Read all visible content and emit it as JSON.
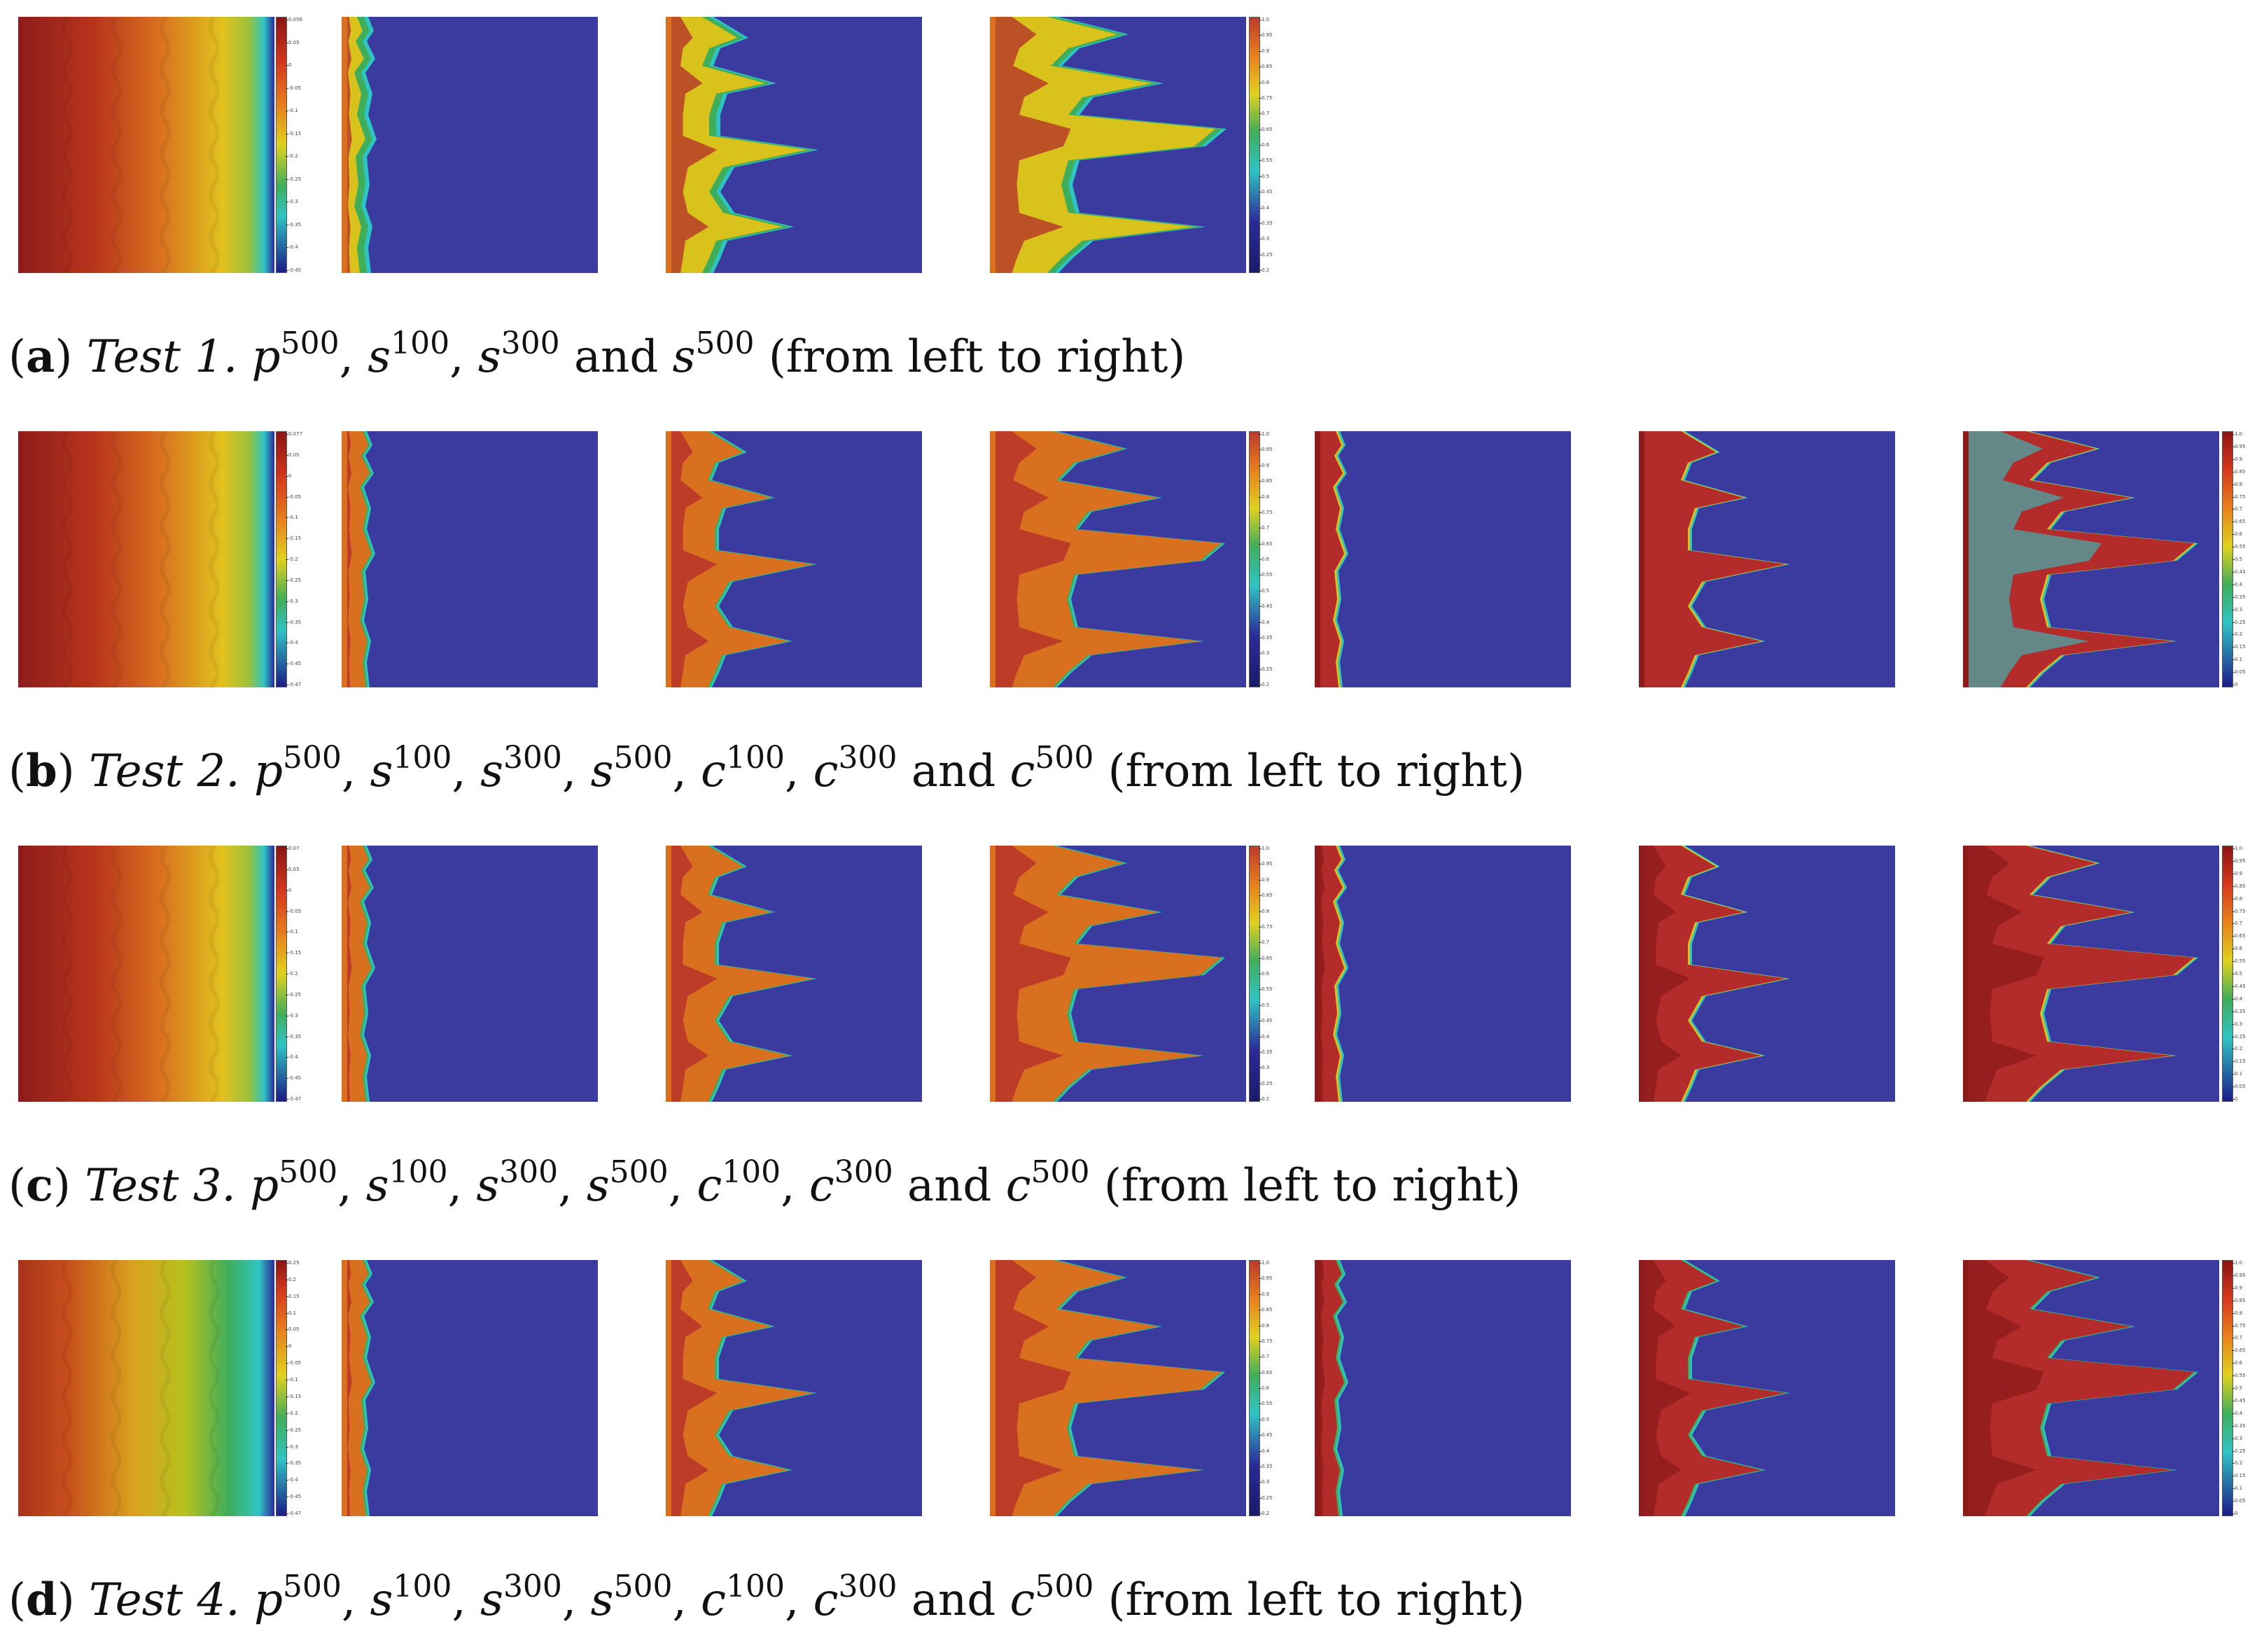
{
  "figure": {
    "rows": [
      {
        "caption": {
          "label": "a",
          "test": "Test 1.",
          "items": [
            {
              "sym": "p",
              "sup": "500",
              "sep": ", "
            },
            {
              "sym": "s",
              "sup": "100",
              "sep": ", "
            },
            {
              "sym": "s",
              "sup": "300",
              "sep": " and "
            },
            {
              "sym": "s",
              "sup": "500",
              "sep": ""
            }
          ],
          "suffix": " (from left to right)"
        },
        "pressure_ticks": [
          "0.056",
          "0.05",
          "0",
          "-0.05",
          "-0.1",
          "-0.15",
          "-0.2",
          "-0.25",
          "-0.3",
          "-0.35",
          "-0.4",
          "-0.45"
        ],
        "saturation_ticks": [
          "1.0",
          "0.95",
          "0.9",
          "0.85",
          "0.8",
          "0.75",
          "0.7",
          "0.65",
          "0.6",
          "0.55",
          "0.5",
          "0.45",
          "0.4",
          "0.35",
          "0.3",
          "0.25",
          "0.2"
        ]
      },
      {
        "caption": {
          "label": "b",
          "test": "Test 2.",
          "items": [
            {
              "sym": "p",
              "sup": "500",
              "sep": ", "
            },
            {
              "sym": "s",
              "sup": "100",
              "sep": ", "
            },
            {
              "sym": "s",
              "sup": "300",
              "sep": ", "
            },
            {
              "sym": "s",
              "sup": "500",
              "sep": ", "
            },
            {
              "sym": "c",
              "sup": "100",
              "sep": ", "
            },
            {
              "sym": "c",
              "sup": "300",
              "sep": " and "
            },
            {
              "sym": "c",
              "sup": "500",
              "sep": ""
            }
          ],
          "suffix": " (from left to right)"
        },
        "pressure_ticks": [
          "0.077",
          "0.05",
          "0",
          "-0.05",
          "-0.1",
          "-0.15",
          "-0.2",
          "-0.25",
          "-0.3",
          "-0.35",
          "-0.4",
          "-0.45",
          "-0.47"
        ],
        "saturation_ticks": [
          "1.0",
          "0.95",
          "0.9",
          "0.85",
          "0.8",
          "0.75",
          "0.7",
          "0.65",
          "0.6",
          "0.55",
          "0.5",
          "0.45",
          "0.4",
          "0.35",
          "0.3",
          "0.25",
          "0.2"
        ],
        "concentration_ticks": [
          "1.0",
          "0.95",
          "0.9",
          "0.85",
          "0.8",
          "0.75",
          "0.7",
          "0.65",
          "0.6",
          "0.55",
          "0.5",
          "0.45",
          "0.4",
          "0.35",
          "0.3",
          "0.25",
          "0.2",
          "0.15",
          "0.1",
          "0.05",
          "0"
        ]
      },
      {
        "caption": {
          "label": "c",
          "test": "Test 3.",
          "items": [
            {
              "sym": "p",
              "sup": "500",
              "sep": ", "
            },
            {
              "sym": "s",
              "sup": "100",
              "sep": ", "
            },
            {
              "sym": "s",
              "sup": "300",
              "sep": ", "
            },
            {
              "sym": "s",
              "sup": "500",
              "sep": ", "
            },
            {
              "sym": "c",
              "sup": "100",
              "sep": ", "
            },
            {
              "sym": "c",
              "sup": "300",
              "sep": " and "
            },
            {
              "sym": "c",
              "sup": "500",
              "sep": ""
            }
          ],
          "suffix": " (from left to right)"
        },
        "pressure_ticks": [
          "0.07",
          "0.05",
          "0",
          "-0.05",
          "-0.1",
          "-0.15",
          "-0.2",
          "-0.25",
          "-0.3",
          "-0.35",
          "-0.4",
          "-0.45",
          "-0.47"
        ],
        "saturation_ticks": [
          "1.0",
          "0.95",
          "0.9",
          "0.85",
          "0.8",
          "0.75",
          "0.7",
          "0.65",
          "0.6",
          "0.55",
          "0.5",
          "0.45",
          "0.4",
          "0.35",
          "0.3",
          "0.25",
          "0.2"
        ],
        "concentration_ticks": [
          "1.0",
          "0.95",
          "0.9",
          "0.85",
          "0.8",
          "0.75",
          "0.7",
          "0.65",
          "0.6",
          "0.55",
          "0.5",
          "0.45",
          "0.4",
          "0.35",
          "0.3",
          "0.25",
          "0.2",
          "0.15",
          "0.1",
          "0.05",
          "0"
        ]
      },
      {
        "caption": {
          "label": "d",
          "test": "Test 4.",
          "items": [
            {
              "sym": "p",
              "sup": "500",
              "sep": ", "
            },
            {
              "sym": "s",
              "sup": "100",
              "sep": ", "
            },
            {
              "sym": "s",
              "sup": "300",
              "sep": ", "
            },
            {
              "sym": "s",
              "sup": "500",
              "sep": ", "
            },
            {
              "sym": "c",
              "sup": "100",
              "sep": ", "
            },
            {
              "sym": "c",
              "sup": "300",
              "sep": " and "
            },
            {
              "sym": "c",
              "sup": "500",
              "sep": ""
            }
          ],
          "suffix": " (from left to right)"
        },
        "pressure_ticks": [
          "0.25",
          "0.2",
          "0.15",
          "0.1",
          "0.05",
          "0",
          "-0.05",
          "-0.1",
          "-0.15",
          "-0.2",
          "-0.25",
          "-0.3",
          "-0.35",
          "-0.4",
          "-0.45",
          "-0.47"
        ],
        "saturation_ticks": [
          "1.0",
          "0.95",
          "0.9",
          "0.85",
          "0.8",
          "0.75",
          "0.7",
          "0.65",
          "0.6",
          "0.55",
          "0.5",
          "0.45",
          "0.4",
          "0.35",
          "0.3",
          "0.25",
          "0.2"
        ],
        "concentration_ticks": [
          "1.0",
          "0.95",
          "0.9",
          "0.85",
          "0.8",
          "0.75",
          "0.7",
          "0.65",
          "0.6",
          "0.55",
          "0.5",
          "0.45",
          "0.4",
          "0.35",
          "0.3",
          "0.25",
          "0.2",
          "0.15",
          "0.1",
          "0.05",
          "0"
        ]
      }
    ],
    "colors": {
      "background_blue": "#3b3b9f",
      "deep_red": "#8e1b1b",
      "red": "#b32b2b",
      "orange": "#d9701f",
      "yellow": "#d9c21b",
      "green": "#3fae5a",
      "cyan": "#2fc4c4",
      "navy": "#1a1a6b"
    }
  }
}
